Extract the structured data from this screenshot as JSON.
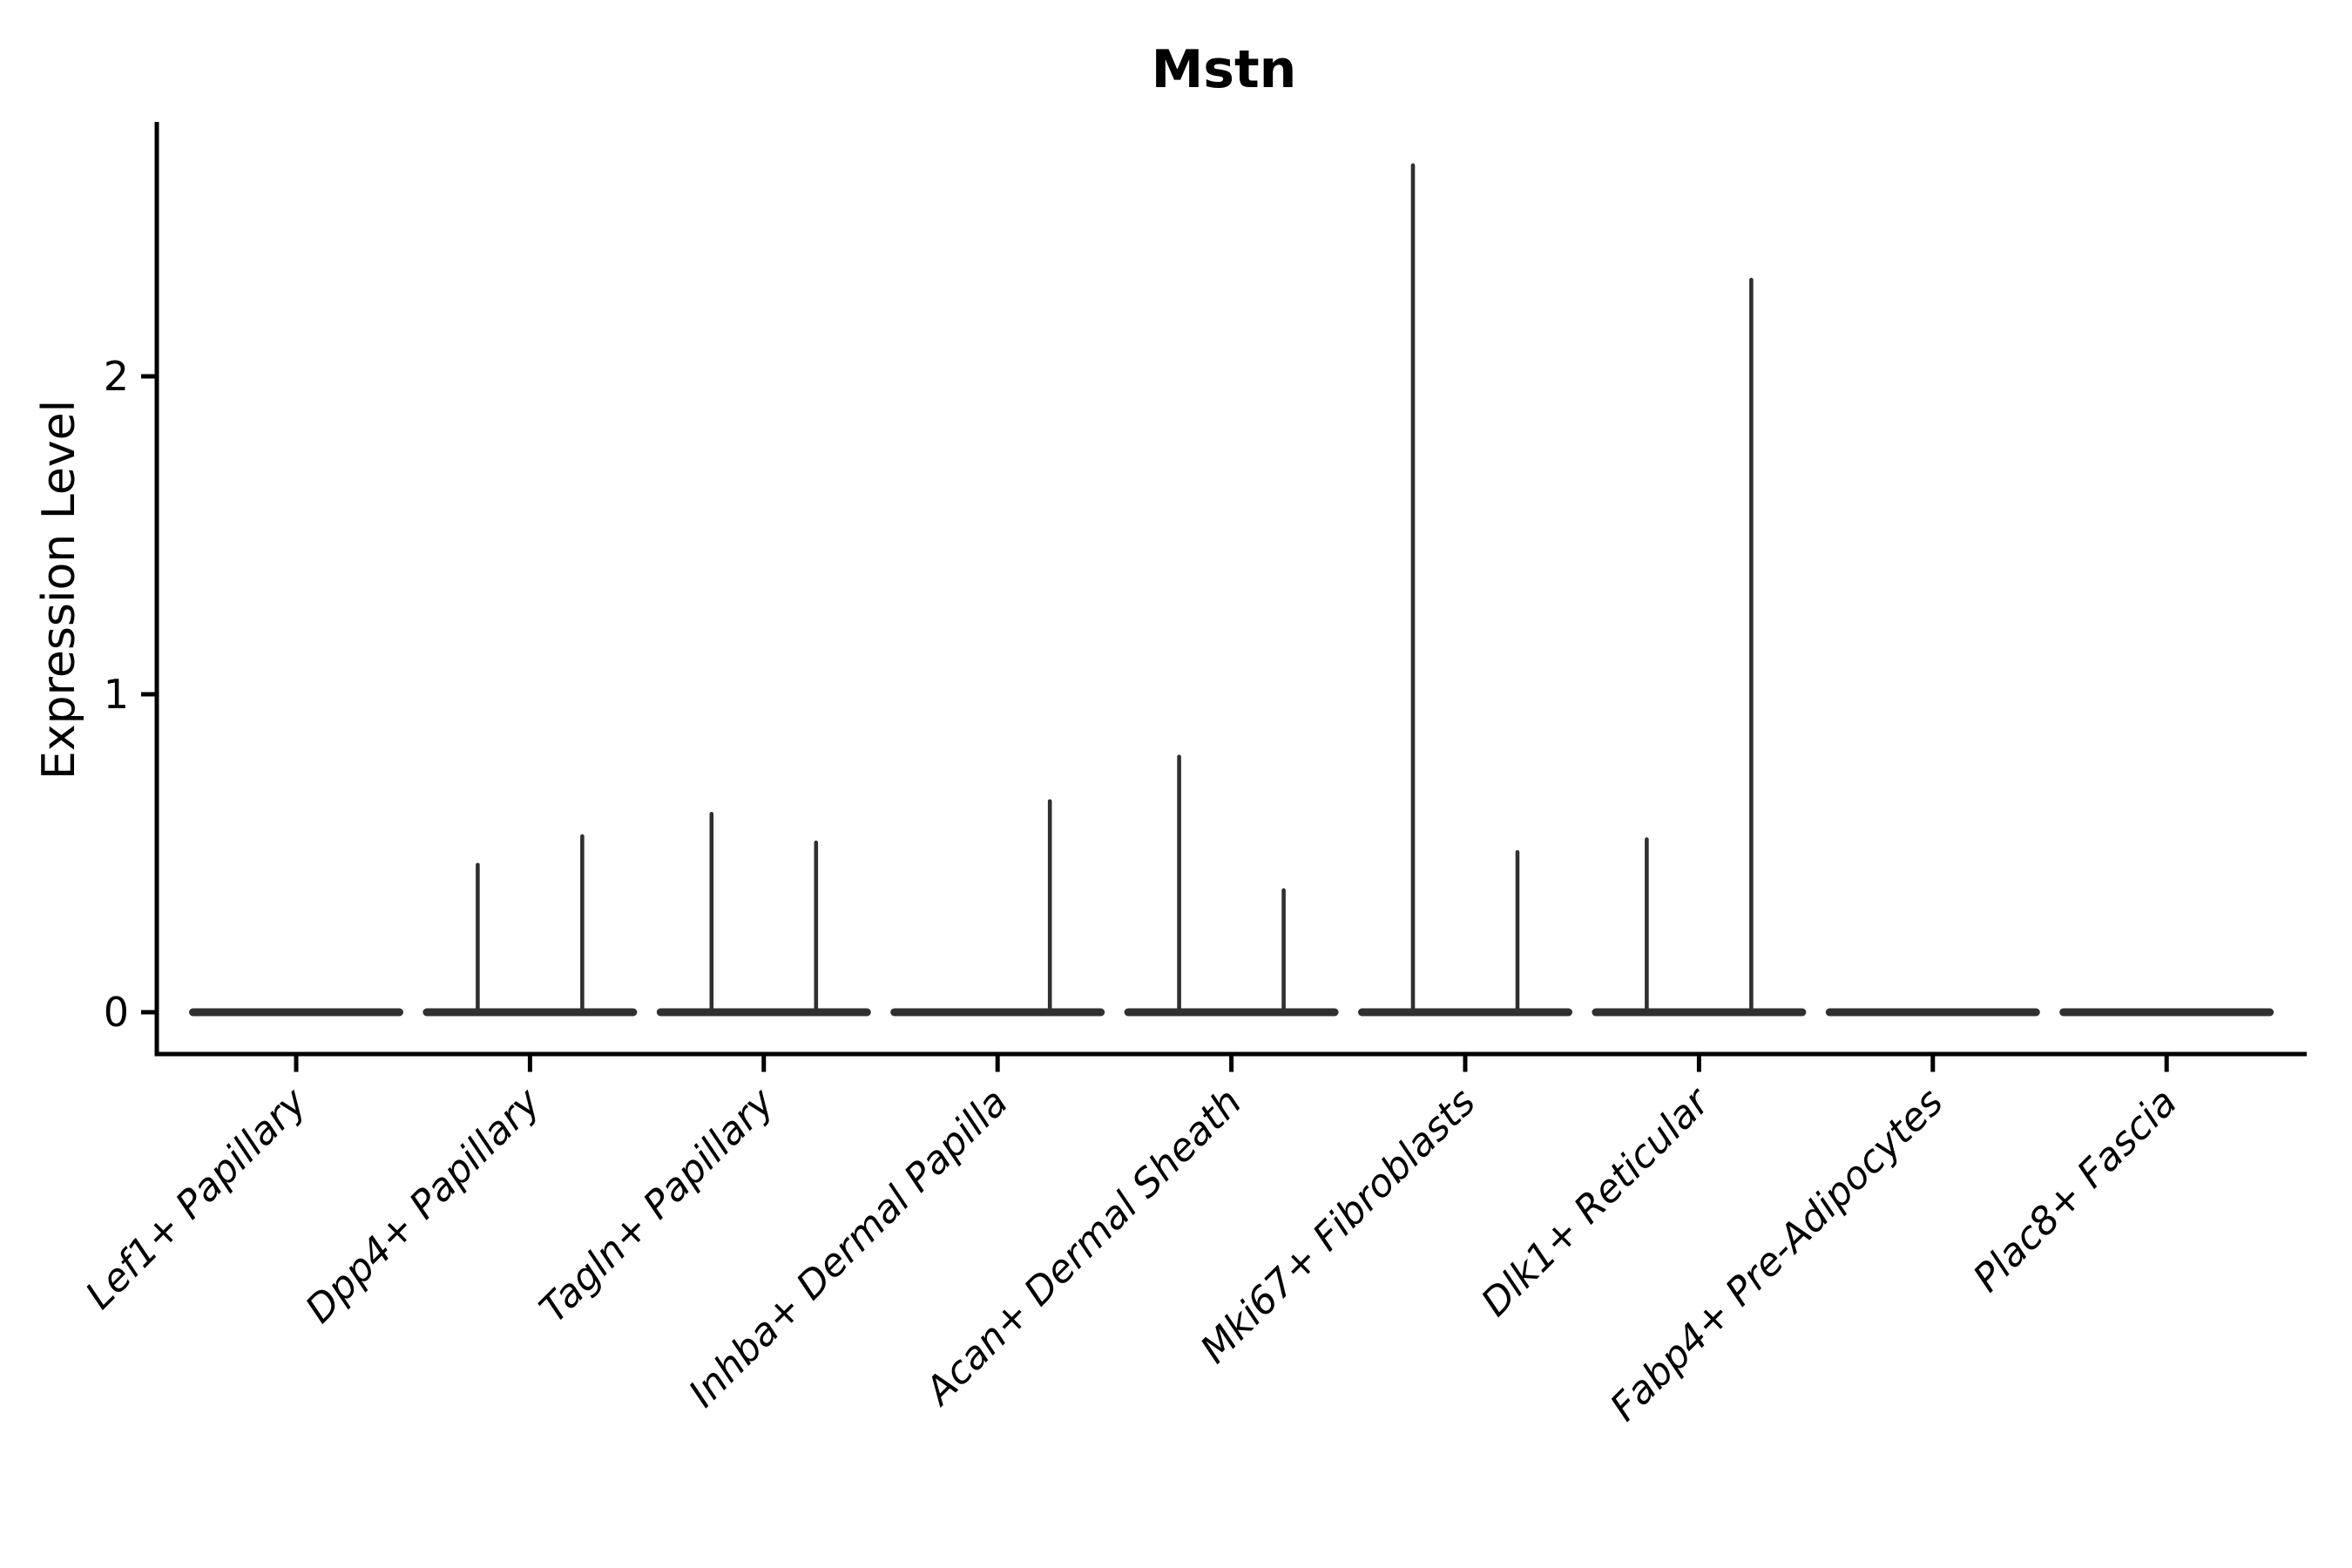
{
  "chart_data": {
    "type": "violin",
    "title": "Mstn",
    "ylabel": "Expression Level",
    "xlabel": "",
    "yticks": [
      0,
      1,
      2
    ],
    "ylim": [
      -0.13,
      2.8
    ],
    "grid": false,
    "legend_position": "none",
    "x_tick_label_rotation_deg": 45,
    "categories": [
      "Lef1+ Papillary",
      "Dpp4+ Papillary",
      "Tagln+ Papillary",
      "Inhba+ Dermal Papilla",
      "Acan+ Dermal Sheath",
      "Mki67+ Fibroblasts",
      "Dlk1+ Reticular",
      "Fabp4+ Pre-Adipocytes",
      "Plac8+ Fascia"
    ],
    "groups": [
      {
        "label": "Lef1+ Papillary",
        "baseline_value": 0,
        "spike_values": [
          0,
          0
        ]
      },
      {
        "label": "Dpp4+ Papillary",
        "baseline_value": 0,
        "spike_values": [
          0.47,
          0.56
        ]
      },
      {
        "label": "Tagln+ Papillary",
        "baseline_value": 0,
        "spike_values": [
          0.63,
          0.54
        ]
      },
      {
        "label": "Inhba+ Dermal Papilla",
        "baseline_value": 0,
        "spike_values": [
          0,
          0.67
        ]
      },
      {
        "label": "Acan+ Dermal Sheath",
        "baseline_value": 0,
        "spike_values": [
          0.81,
          0.39
        ]
      },
      {
        "label": "Mki67+ Fibroblasts",
        "baseline_value": 0,
        "spike_values": [
          2.67,
          0.51
        ]
      },
      {
        "label": "Dlk1+ Reticular",
        "baseline_value": 0,
        "spike_values": [
          0.55,
          2.31
        ]
      },
      {
        "label": "Fabp4+ Pre-Adipocytes",
        "baseline_value": 0,
        "spike_values": [
          0,
          0
        ]
      },
      {
        "label": "Plac8+ Fascia",
        "baseline_value": 0,
        "spike_values": [
          0,
          0
        ]
      }
    ]
  },
  "colors": {
    "violin": "#303030",
    "axis": "#000000",
    "text": "#000000",
    "background": "#ffffff"
  }
}
